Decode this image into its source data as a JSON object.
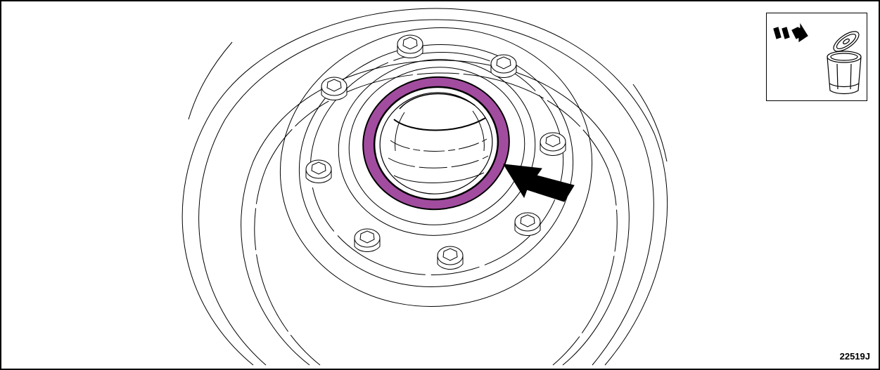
{
  "figure": {
    "id": "22519J"
  },
  "inset": {
    "icon": "discard-trash-can-icon"
  },
  "colors": {
    "line": "#000000",
    "highlight": "#a24c9f",
    "background": "#ffffff"
  }
}
